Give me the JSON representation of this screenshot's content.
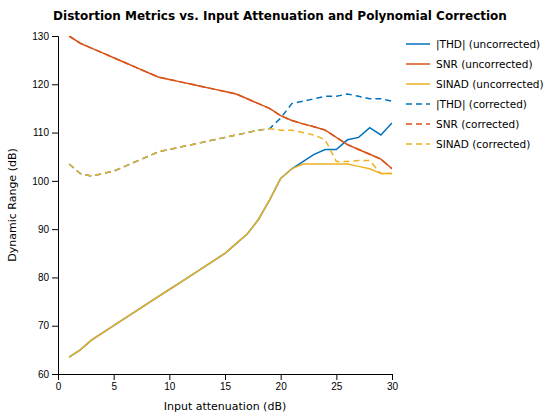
{
  "chart_data": {
    "type": "line",
    "title": "Distortion Metrics vs. Input Attenuation and Polynomial Correction",
    "xlabel": "Input attenuation (dB)",
    "ylabel": "Dynamic Range (dB)",
    "x": [
      1,
      2,
      3,
      4,
      5,
      6,
      7,
      8,
      9,
      10,
      11,
      12,
      13,
      14,
      15,
      16,
      17,
      18,
      19,
      20,
      21,
      22,
      23,
      24,
      25,
      26,
      27,
      28,
      29,
      30
    ],
    "xlim": [
      0,
      30
    ],
    "ylim": [
      60,
      130
    ],
    "xticks": [
      0,
      5,
      10,
      15,
      20,
      25,
      30
    ],
    "yticks": [
      60,
      70,
      80,
      90,
      100,
      110,
      120,
      130
    ],
    "grid": false,
    "legend": "right",
    "series": [
      {
        "name": "|THD| (uncorrected)",
        "color": "#0072BD",
        "line_style": "solid",
        "values": [
          63.5,
          65.0,
          67.0,
          68.5,
          70.0,
          71.5,
          73.0,
          74.5,
          76.0,
          77.5,
          79.0,
          80.5,
          82.0,
          83.5,
          85.0,
          87.0,
          89.0,
          92.0,
          96.0,
          100.5,
          102.5,
          104.0,
          105.5,
          106.5,
          106.5,
          108.5,
          109.0,
          111.0,
          109.5,
          112.0
        ]
      },
      {
        "name": "SNR (uncorrected)",
        "color": "#D95319",
        "line_style": "solid",
        "values": [
          130.0,
          128.5,
          127.5,
          126.5,
          125.5,
          124.5,
          123.5,
          122.5,
          121.5,
          121.0,
          120.5,
          120.0,
          119.5,
          119.0,
          118.5,
          118.0,
          117.0,
          116.0,
          115.0,
          113.5,
          112.5,
          111.8,
          111.2,
          110.5,
          109.0,
          107.5,
          106.5,
          105.5,
          104.5,
          102.5
        ]
      },
      {
        "name": "SINAD (uncorrected)",
        "color": "#EDB120",
        "line_style": "solid",
        "values": [
          63.5,
          65.0,
          67.0,
          68.5,
          70.0,
          71.5,
          73.0,
          74.5,
          76.0,
          77.5,
          79.0,
          80.5,
          82.0,
          83.5,
          85.0,
          87.0,
          89.0,
          92.0,
          96.0,
          100.5,
          102.5,
          103.5,
          103.5,
          103.5,
          103.5,
          103.5,
          103.0,
          102.5,
          101.5,
          101.5
        ]
      },
      {
        "name": "|THD| (corrected)",
        "color": "#0072BD",
        "line_style": "dashed",
        "values": [
          103.5,
          101.5,
          101.0,
          101.5,
          102.0,
          103.0,
          104.0,
          105.0,
          106.0,
          106.5,
          107.0,
          107.5,
          108.0,
          108.5,
          109.0,
          109.5,
          110.0,
          110.5,
          110.8,
          113.0,
          116.0,
          116.5,
          117.0,
          117.5,
          117.5,
          118.0,
          117.5,
          117.0,
          117.0,
          116.5
        ]
      },
      {
        "name": "SNR (corrected)",
        "color": "#D95319",
        "line_style": "dashed",
        "values": [
          130.0,
          128.5,
          127.5,
          126.5,
          125.5,
          124.5,
          123.5,
          122.5,
          121.5,
          121.0,
          120.5,
          120.0,
          119.5,
          119.0,
          118.5,
          118.0,
          117.0,
          116.0,
          115.0,
          113.5,
          112.5,
          111.8,
          111.2,
          110.5,
          109.0,
          107.5,
          106.5,
          105.5,
          104.5,
          102.5
        ]
      },
      {
        "name": "SINAD (corrected)",
        "color": "#EDB120",
        "line_style": "dashed",
        "values": [
          103.5,
          101.5,
          101.0,
          101.5,
          102.0,
          103.0,
          104.0,
          105.0,
          106.0,
          106.5,
          107.0,
          107.5,
          108.0,
          108.5,
          109.0,
          109.5,
          110.0,
          110.5,
          110.8,
          110.5,
          110.5,
          110.0,
          109.5,
          108.5,
          104.0,
          104.0,
          104.2,
          104.2,
          101.5,
          101.5
        ]
      }
    ]
  }
}
